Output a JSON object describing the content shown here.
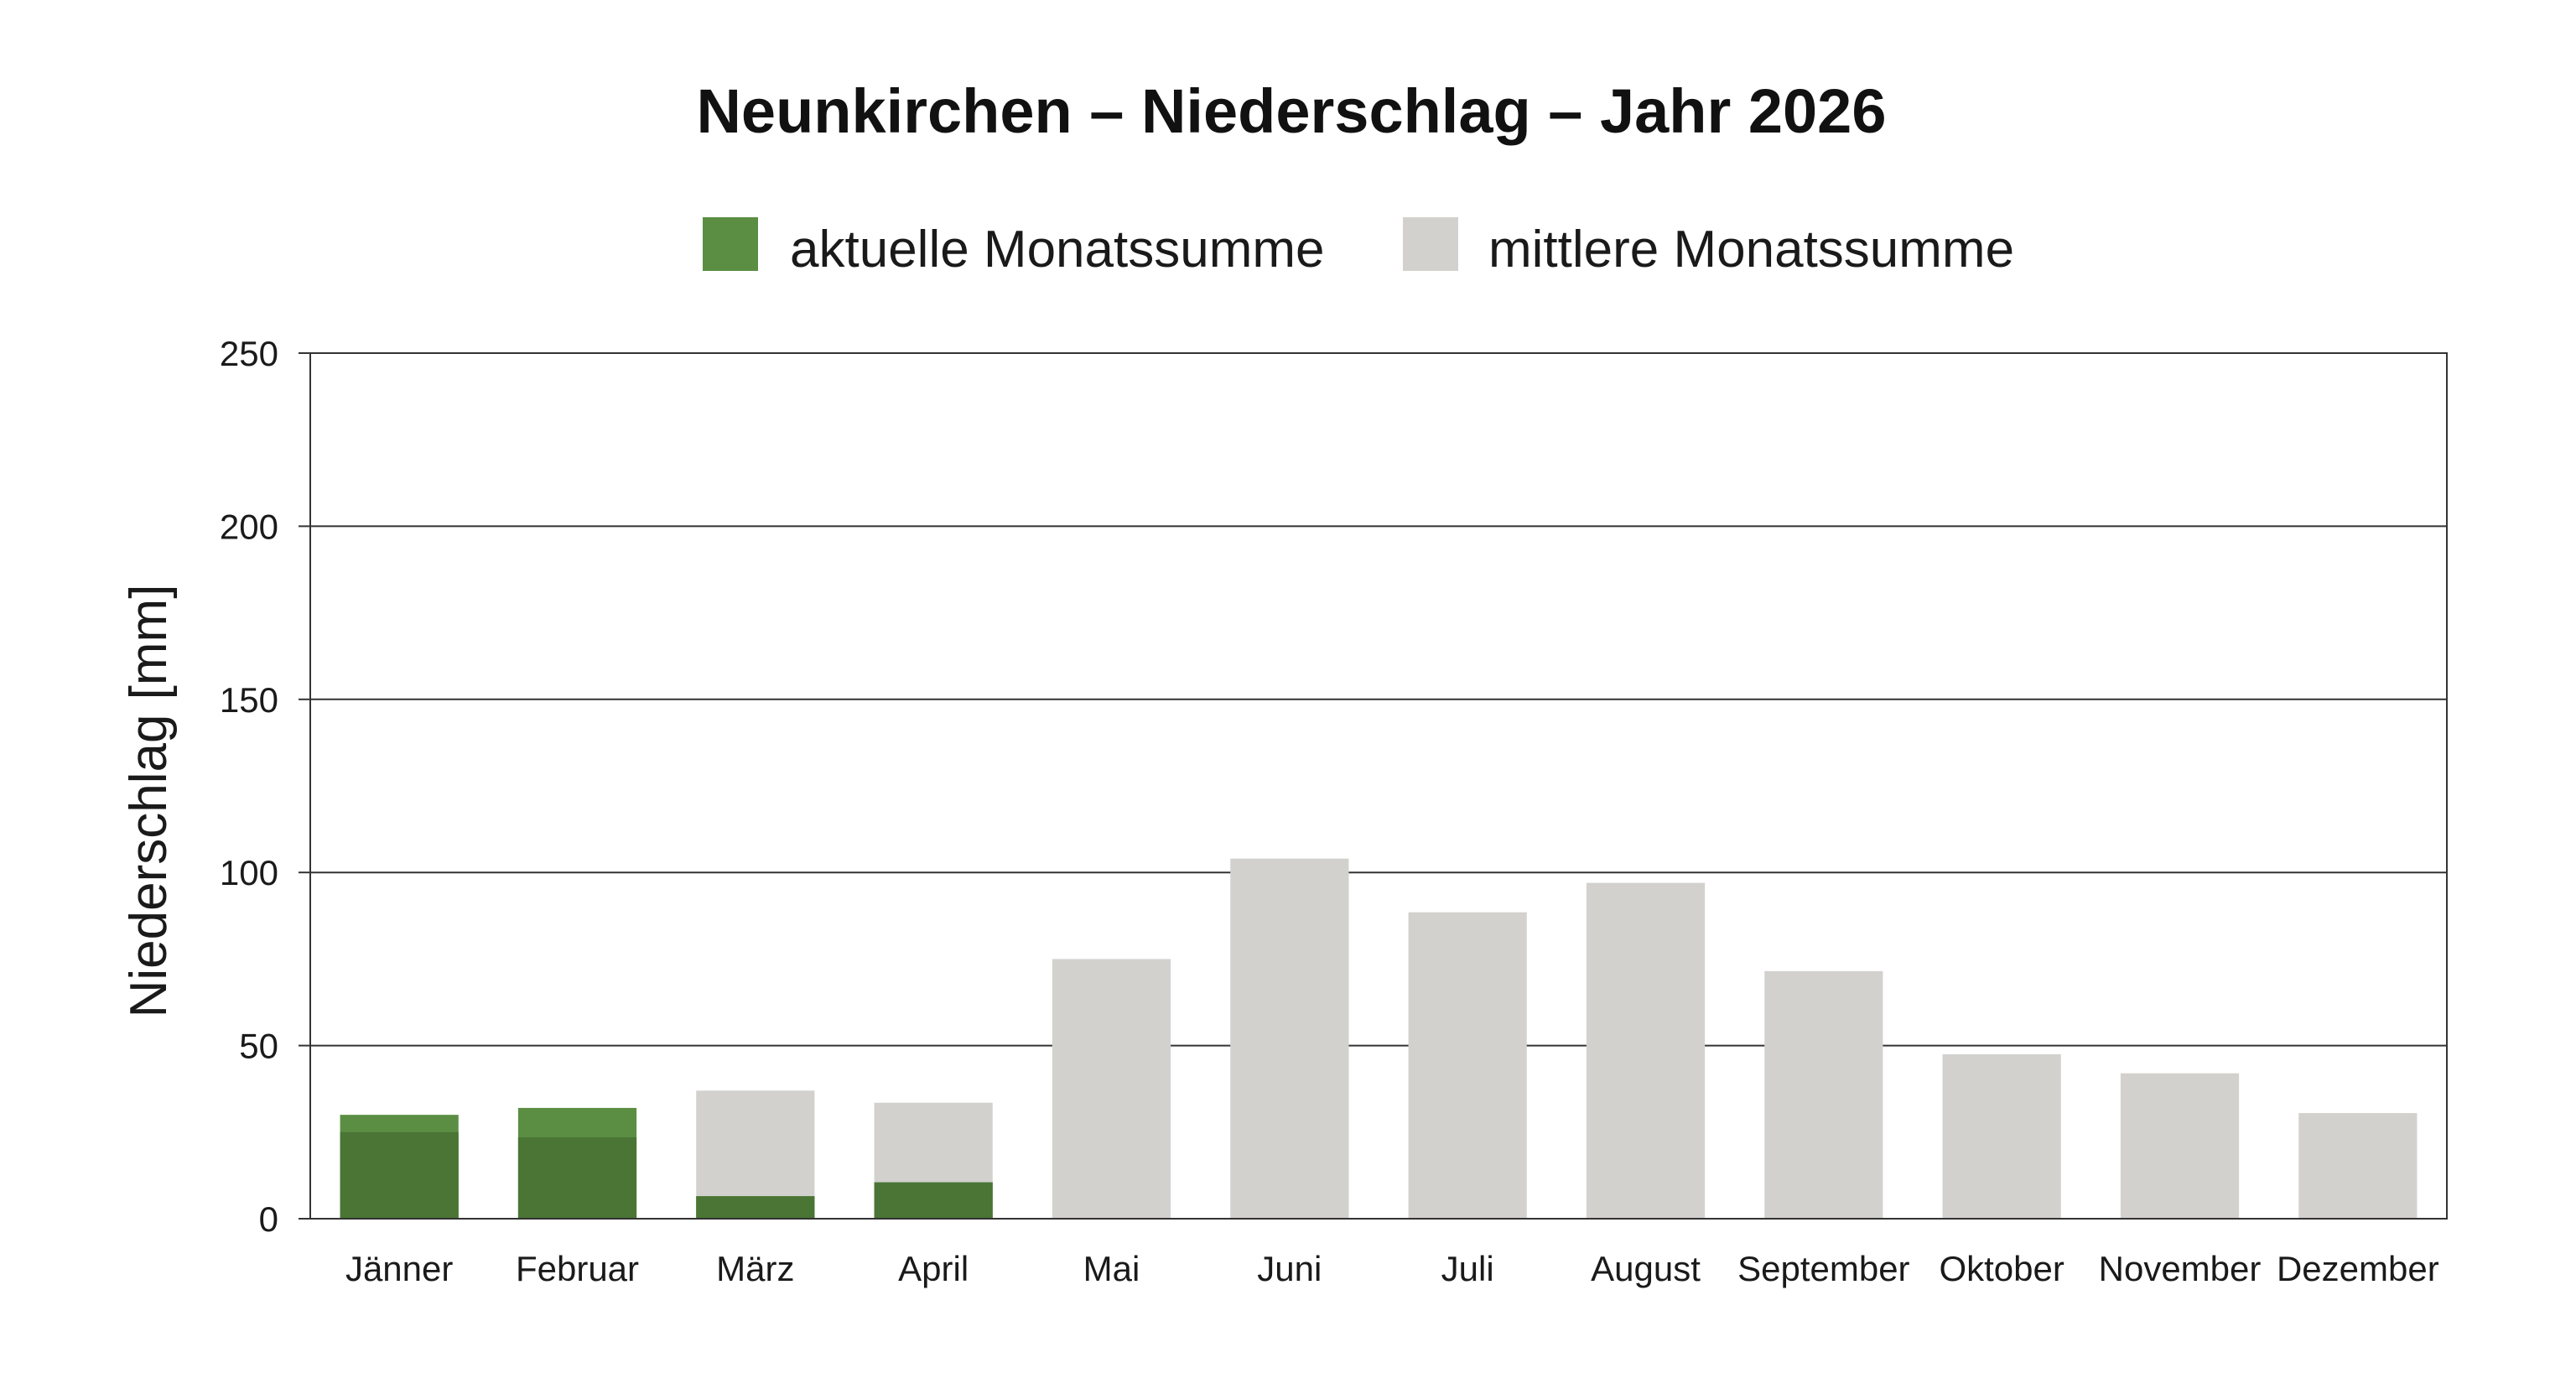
{
  "chart_data": {
    "type": "bar",
    "title": "Neunkirchen – Niederschlag – Jahr 2026",
    "ylabel": "Niederschlag [mm]",
    "xlabel": "",
    "ylim": [
      0,
      250
    ],
    "yticks": [
      0,
      50,
      100,
      150,
      200,
      250
    ],
    "grid": true,
    "legend_position": "top",
    "categories": [
      "Jänner",
      "Februar",
      "März",
      "April",
      "Mai",
      "Juni",
      "Juli",
      "August",
      "September",
      "Oktober",
      "November",
      "Dezember"
    ],
    "series": [
      {
        "name": "aktuelle Monatssumme",
        "color": "#5b8e43",
        "values": [
          30,
          32,
          6.5,
          10.5,
          null,
          null,
          null,
          null,
          null,
          null,
          null,
          null
        ]
      },
      {
        "name": "mittlere Monatssumme",
        "color": "#d3d1ce",
        "values": [
          25,
          23.5,
          37,
          33.5,
          75,
          104,
          88.5,
          97,
          71.5,
          47.5,
          42,
          30.5
        ]
      }
    ],
    "overlap_color": "#4a7535"
  }
}
